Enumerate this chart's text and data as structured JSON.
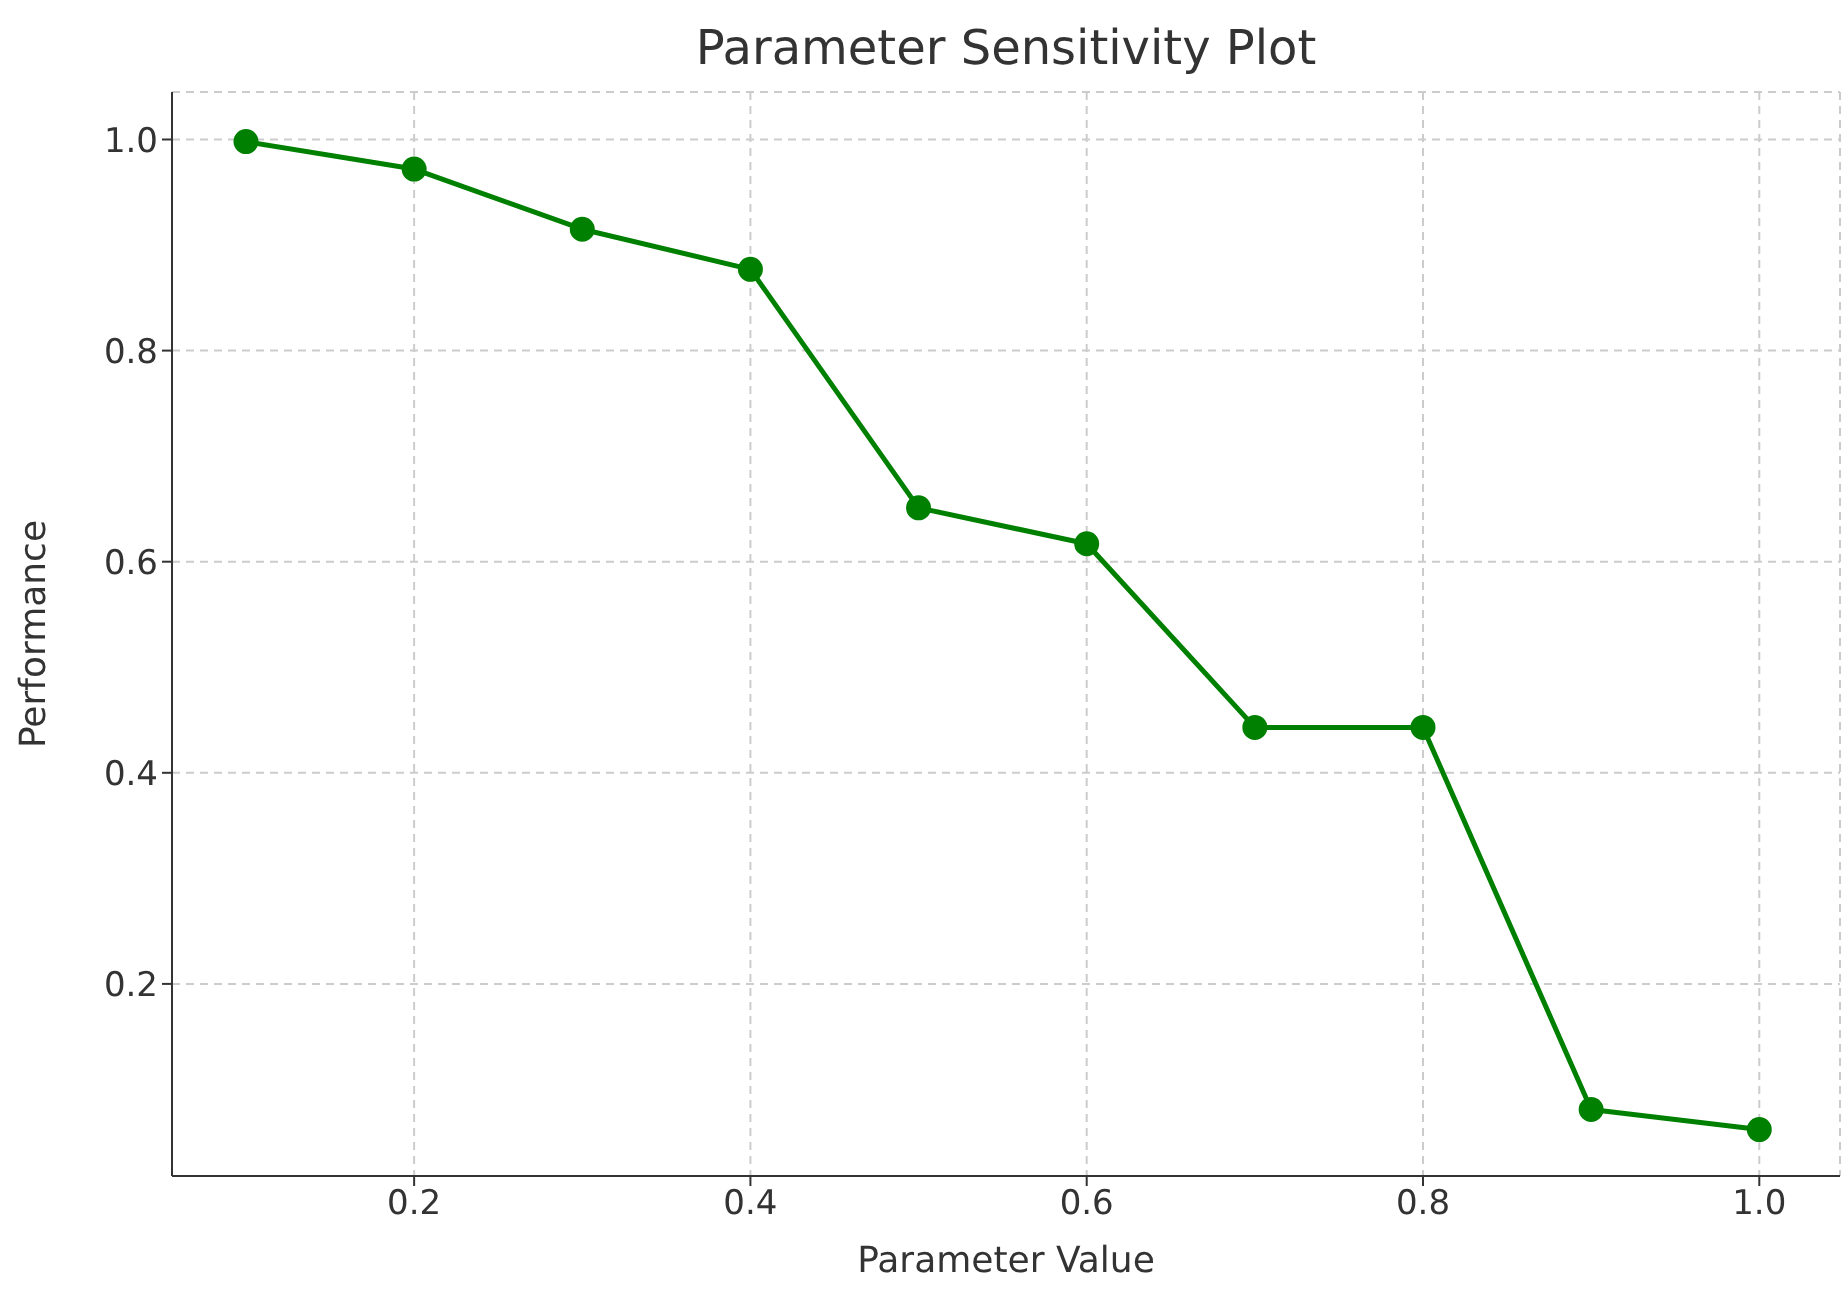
{
  "chart_data": {
    "type": "line",
    "title": "Parameter Sensitivity Plot",
    "xlabel": "Parameter Value",
    "ylabel": "Performance",
    "x": [
      0.1,
      0.2,
      0.3,
      0.4,
      0.5,
      0.6,
      0.7,
      0.8,
      0.9,
      1.0
    ],
    "series": [
      {
        "color": "#008000",
        "values": [
          0.998,
          0.972,
          0.915,
          0.877,
          0.651,
          0.617,
          0.443,
          0.443,
          0.081,
          0.062
        ]
      }
    ],
    "xlim": [
      0.056,
      1.048
    ],
    "xticks": [
      {
        "value": 0.2,
        "label": "0.2"
      },
      {
        "value": 0.4,
        "label": "0.4"
      },
      {
        "value": 0.6,
        "label": "0.6"
      },
      {
        "value": 0.8,
        "label": "0.8"
      },
      {
        "value": 1.0,
        "label": "1.0"
      }
    ],
    "ylim": [
      0.018,
      1.045
    ],
    "yticks": [
      {
        "value": 0.2,
        "label": "0.2"
      },
      {
        "value": 0.4,
        "label": "0.4"
      },
      {
        "value": 0.6,
        "label": "0.6"
      },
      {
        "value": 0.8,
        "label": "0.8"
      },
      {
        "value": 1.0,
        "label": "1.0"
      }
    ],
    "grid": true,
    "marker": "circle",
    "line_style": "solid",
    "legend": false
  }
}
